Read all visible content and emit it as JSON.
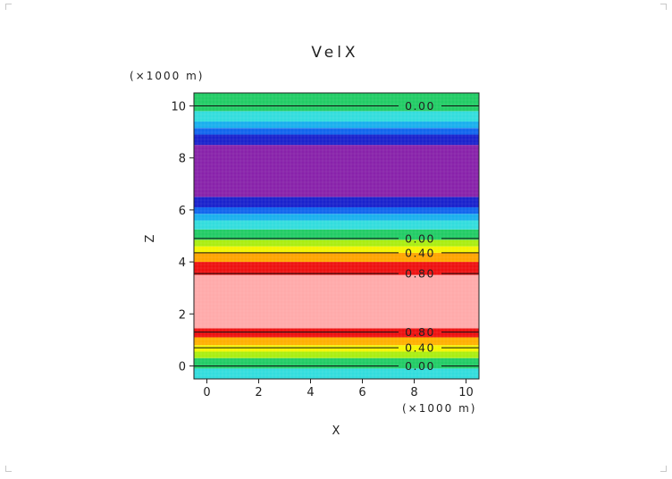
{
  "chart_data": {
    "type": "heatmap",
    "title": "VelX",
    "xlabel": "X",
    "ylabel": "Z",
    "x_unit": "(×1000 m)",
    "y_unit": "(×1000 m)",
    "xlim": [
      -0.5,
      10.5
    ],
    "ylim": [
      -0.5,
      10.5
    ],
    "x_ticks": [
      0,
      2,
      4,
      6,
      8,
      10
    ],
    "y_ticks": [
      0,
      2,
      4,
      6,
      8,
      10
    ],
    "bands": [
      {
        "z0": -0.5,
        "z1": -0.1,
        "color": "#33dddd"
      },
      {
        "z0": -0.1,
        "z1": 0.3,
        "color": "#22cc66"
      },
      {
        "z0": 0.3,
        "z1": 0.55,
        "color": "#aaee11"
      },
      {
        "z0": 0.55,
        "z1": 0.8,
        "color": "#f5f500"
      },
      {
        "z0": 0.8,
        "z1": 1.1,
        "color": "#ffb000"
      },
      {
        "z0": 1.1,
        "z1": 1.45,
        "color": "#ee1111"
      },
      {
        "z0": 1.45,
        "z1": 3.5,
        "color": "#ffaaaa"
      },
      {
        "z0": 3.5,
        "z1": 4.0,
        "color": "#ee1111"
      },
      {
        "z0": 4.0,
        "z1": 4.35,
        "color": "#ffa500"
      },
      {
        "z0": 4.35,
        "z1": 4.6,
        "color": "#f5f500"
      },
      {
        "z0": 4.6,
        "z1": 4.85,
        "color": "#aaee11"
      },
      {
        "z0": 4.85,
        "z1": 5.25,
        "color": "#22cc66"
      },
      {
        "z0": 5.25,
        "z1": 5.6,
        "color": "#33dddd"
      },
      {
        "z0": 5.6,
        "z1": 5.85,
        "color": "#1ab0ee"
      },
      {
        "z0": 5.85,
        "z1": 6.1,
        "color": "#1166ee"
      },
      {
        "z0": 6.1,
        "z1": 6.5,
        "color": "#1a22cc"
      },
      {
        "z0": 6.5,
        "z1": 8.5,
        "color": "#8822aa"
      },
      {
        "z0": 8.5,
        "z1": 8.9,
        "color": "#1a22cc"
      },
      {
        "z0": 8.9,
        "z1": 9.15,
        "color": "#1166ee"
      },
      {
        "z0": 9.15,
        "z1": 9.4,
        "color": "#1ab0ee"
      },
      {
        "z0": 9.4,
        "z1": 9.8,
        "color": "#33dddd"
      },
      {
        "z0": 9.8,
        "z1": 10.5,
        "color": "#22cc66"
      }
    ],
    "contours": [
      {
        "z": 0.0,
        "label": "0.00"
      },
      {
        "z": 0.7,
        "label": "0.40"
      },
      {
        "z": 1.3,
        "label": "0.80"
      },
      {
        "z": 3.55,
        "label": "0.80"
      },
      {
        "z": 4.35,
        "label": "0.40"
      },
      {
        "z": 4.9,
        "label": "0.00"
      },
      {
        "z": 10.0,
        "label": "0.00"
      }
    ]
  }
}
